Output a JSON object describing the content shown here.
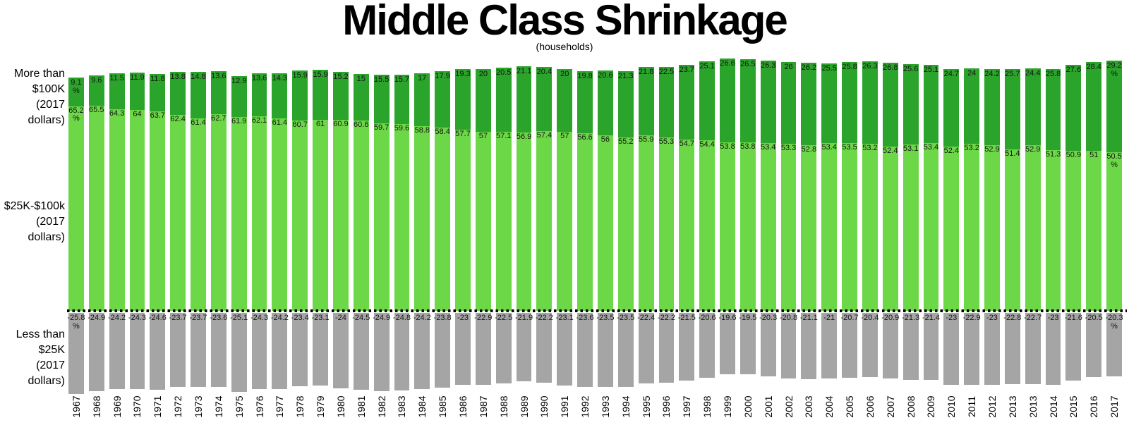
{
  "title": "Middle Class Shrinkage",
  "subtitle": "(households)",
  "axis_labels": {
    "top": [
      "More than",
      "$100K",
      "(2017 dollars)"
    ],
    "middle": [
      "$25K-$100k",
      "(2017 dollars)"
    ],
    "bottom": [
      "Less than",
      "$25K",
      "(2017 dollars)"
    ]
  },
  "colors": {
    "upper_green": "#2aa42a",
    "middle_green": "#6cd747",
    "lower_gray": "#a5a5a5",
    "zero_line": "#000000",
    "label_text": "#141414"
  },
  "chart_data": {
    "type": "bar",
    "stacked": true,
    "orientation": "vertical",
    "title": "Middle Class Shrinkage",
    "subtitle": "(households)",
    "unit": "%",
    "grid": false,
    "legend_position": "left-axis-text",
    "zero_line_style": "dotted",
    "first_and_last_labels_show_percent_sign": true,
    "categories": [
      "1967",
      "1968",
      "1969",
      "1970",
      "1971",
      "1972",
      "1973",
      "1974",
      "1975",
      "1976",
      "1977",
      "1978",
      "1979",
      "1980",
      "1981",
      "1982",
      "1983",
      "1984",
      "1985",
      "1986",
      "1987",
      "1988",
      "1989",
      "1990",
      "1991",
      "1992",
      "1993",
      "1994",
      "1995",
      "1996",
      "1997",
      "1998",
      "1999",
      "2000",
      "2001",
      "2002",
      "2003",
      "2004",
      "2005",
      "2006",
      "2007",
      "2008",
      "2009",
      "2010",
      "2011",
      "2012",
      "2013",
      "2013",
      "2014",
      "2015",
      "2016",
      "2017"
    ],
    "series": [
      {
        "name": "More than $100K (2017 dollars)",
        "color": "#2aa42a",
        "values": [
          9.1,
          9.6,
          11.5,
          11.9,
          11.8,
          13.8,
          14.8,
          13.6,
          12.9,
          13.6,
          14.3,
          15.9,
          15.9,
          15.2,
          15,
          15.5,
          15.7,
          17,
          17.9,
          19.3,
          20,
          20.5,
          21.1,
          20.4,
          20,
          19.8,
          20.6,
          21.3,
          21.8,
          22.5,
          23.7,
          25.1,
          26.6,
          26.5,
          26.3,
          26,
          26.2,
          25.5,
          25.8,
          26.3,
          26.8,
          25.6,
          25.1,
          24.7,
          24,
          24.2,
          25.7,
          24.4,
          25.8,
          27.6,
          28.4,
          29.2
        ]
      },
      {
        "name": "$25K-$100k (2017 dollars)",
        "color": "#6cd747",
        "values": [
          65.2,
          65.5,
          64.3,
          64,
          63.7,
          62.4,
          61.4,
          62.7,
          61.9,
          62.1,
          61.4,
          60.7,
          61,
          60.9,
          60.6,
          59.7,
          59.6,
          58.8,
          58.4,
          57.7,
          57,
          57.1,
          56.9,
          57.4,
          57,
          56.6,
          56,
          55.2,
          55.9,
          55.3,
          54.7,
          54.4,
          53.8,
          53.8,
          53.4,
          53.3,
          52.8,
          53.4,
          53.5,
          53.2,
          52.4,
          53.1,
          53.4,
          52.4,
          53.2,
          52.9,
          51.4,
          52.9,
          51.3,
          50.9,
          51,
          50.5
        ]
      },
      {
        "name": "Less than $25K (2017 dollars)",
        "color": "#a5a5a5",
        "values": [
          -25.8,
          -24.9,
          -24.2,
          -24.3,
          -24.6,
          -23.7,
          -23.7,
          -23.6,
          -25.1,
          -24.3,
          -24.2,
          -23.4,
          -23.1,
          -24,
          -24.5,
          -24.9,
          -24.8,
          -24.2,
          -23.8,
          -23,
          -22.9,
          -22.5,
          -21.9,
          -22.2,
          -23.1,
          -23.6,
          -23.5,
          -23.5,
          -22.4,
          -22.2,
          -21.5,
          -20.6,
          -19.6,
          -19.5,
          -20.3,
          -20.8,
          -21.1,
          -21,
          -20.7,
          -20.4,
          -20.9,
          -21.3,
          -21.4,
          -23,
          -22.9,
          -23,
          -22.8,
          -22.7,
          -23,
          -21.6,
          -20.5,
          -20.3
        ]
      }
    ],
    "ylim": [
      -26,
      30
    ]
  }
}
